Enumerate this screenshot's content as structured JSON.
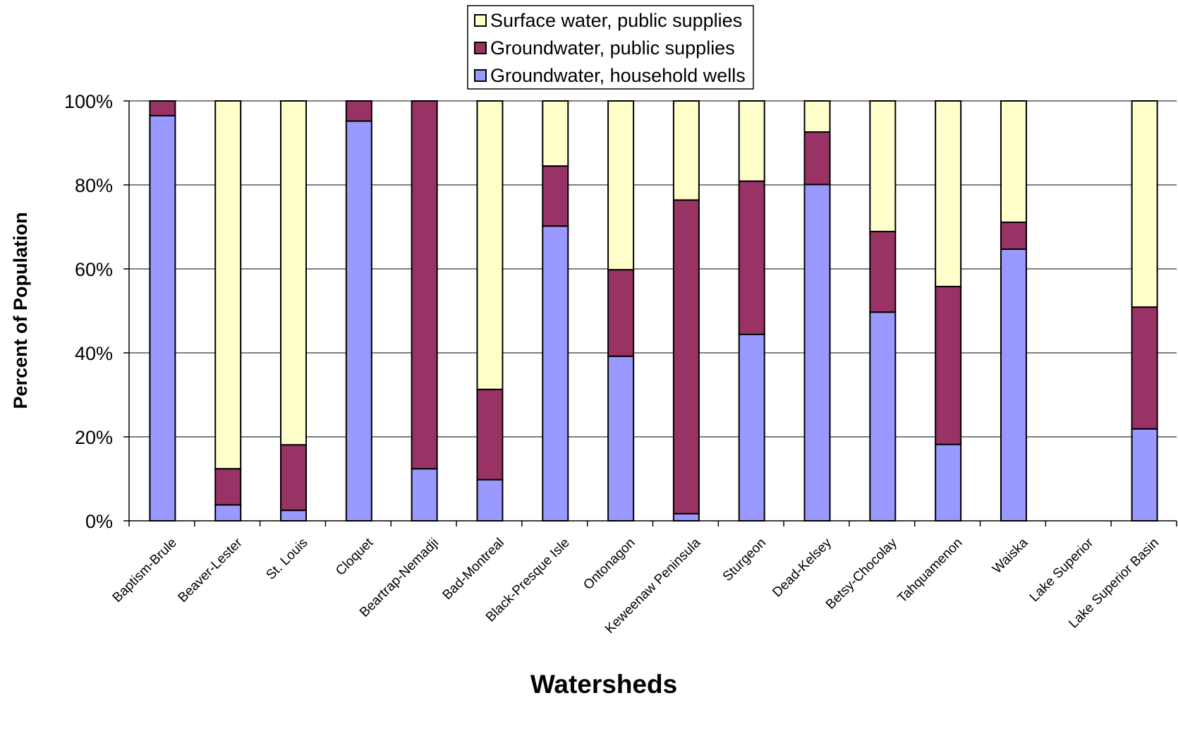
{
  "chart_data": {
    "type": "bar",
    "stacked": true,
    "percent_stacked": true,
    "title": "",
    "xlabel": "Watersheds",
    "ylabel": "Percent of Population",
    "ylim": [
      0,
      100
    ],
    "y_ticks": [
      "0%",
      "20%",
      "40%",
      "60%",
      "80%",
      "100%"
    ],
    "grid": true,
    "legend_position": "top",
    "categories": [
      "Baptism-Brule",
      "Beaver-Lester",
      "St. Louis",
      "Cloquet",
      "Beartrap-Nemadji",
      "Bad-Montreal",
      "Black-Presque Isle",
      "Ontonagon",
      "Keweenaw Peninsula",
      "Sturgeon",
      "Dead-Kelsey",
      "Betsy-Chocolay",
      "Tahquamenon",
      "Waiska",
      "Lake Superior",
      "Lake Superior Basin"
    ],
    "series": [
      {
        "name": "Groundwater, household wells",
        "color": "#9999ff",
        "values": [
          96.5,
          3.8,
          2.5,
          95.2,
          12.4,
          9.8,
          70.2,
          39.2,
          1.7,
          44.4,
          80.1,
          49.7,
          18.2,
          64.7,
          0,
          21.9
        ]
      },
      {
        "name": "Groundwater, public supplies",
        "color": "#993366",
        "values": [
          3.5,
          8.6,
          15.6,
          4.8,
          87.6,
          21.5,
          14.3,
          20.6,
          74.7,
          36.5,
          12.5,
          19.2,
          37.6,
          6.4,
          0,
          29.0
        ]
      },
      {
        "name": "Surface water, public supplies",
        "color": "#ffffcc",
        "values": [
          0,
          87.6,
          81.9,
          0,
          0,
          68.7,
          15.5,
          40.2,
          23.6,
          19.1,
          7.4,
          31.1,
          44.2,
          28.9,
          0,
          49.1
        ]
      }
    ]
  }
}
